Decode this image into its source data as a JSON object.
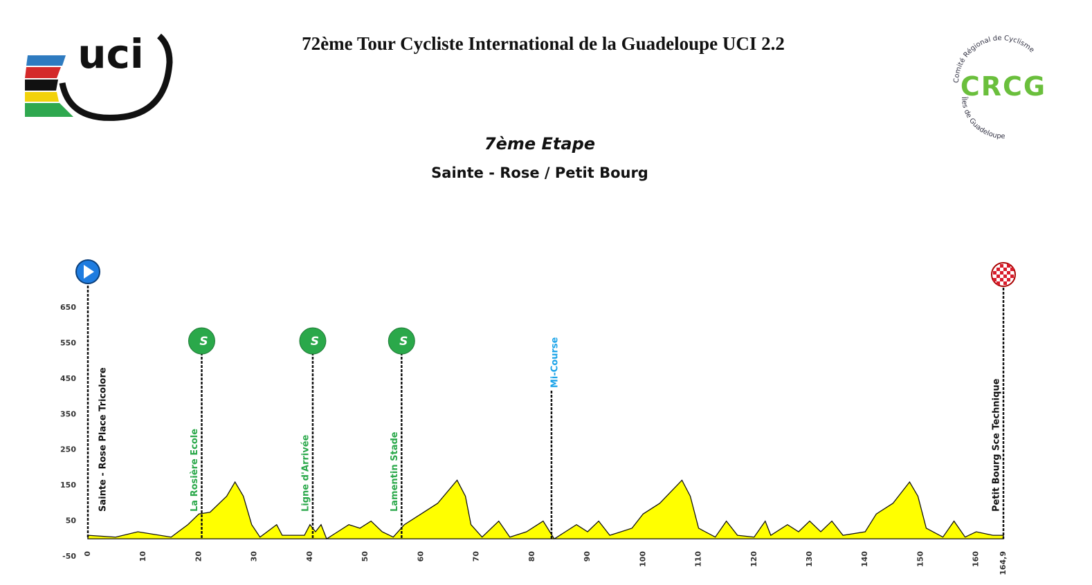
{
  "header": {
    "title": "72ème Tour Cycliste International de la Guadeloupe UCI 2.2",
    "uci_logo": "uci",
    "crcg_logo": "CRCG",
    "crcg_top": "Comité Régional de Cyclisme",
    "crcg_bottom": "Îles de Guadeloupe",
    "stage": "7ème  Etape",
    "route": "Sainte - Rose  /  Petit Bourg"
  },
  "chart_data": {
    "type": "area",
    "color": "#ffff00",
    "x": [
      0,
      5,
      9,
      15,
      18,
      20,
      22,
      25,
      26.5,
      28,
      29.5,
      31,
      34,
      35,
      39,
      40,
      41,
      42,
      43,
      45,
      47,
      49,
      51,
      53,
      55,
      57,
      60,
      63,
      66.5,
      68,
      69,
      71,
      74,
      76,
      79,
      82,
      84,
      86,
      88,
      90,
      92,
      94,
      98,
      100,
      103,
      107,
      108.5,
      110,
      113,
      115,
      117,
      120,
      122,
      123,
      126,
      128,
      130,
      132,
      134,
      136,
      140,
      142,
      145,
      148,
      149.5,
      151,
      154,
      156,
      158,
      160,
      163,
      164.9
    ],
    "values": [
      10,
      5,
      20,
      5,
      40,
      70,
      75,
      120,
      160,
      120,
      40,
      5,
      40,
      10,
      10,
      40,
      20,
      40,
      0,
      20,
      40,
      30,
      50,
      20,
      5,
      40,
      70,
      100,
      165,
      120,
      40,
      5,
      50,
      5,
      20,
      50,
      0,
      20,
      40,
      20,
      50,
      10,
      30,
      70,
      100,
      165,
      120,
      30,
      5,
      50,
      10,
      5,
      50,
      10,
      40,
      20,
      50,
      20,
      50,
      10,
      20,
      70,
      100,
      160,
      120,
      30,
      5,
      50,
      5,
      20,
      10,
      10
    ],
    "xlim": [
      0,
      164.9
    ],
    "ylim": [
      -50,
      650
    ],
    "xticks": [
      0,
      10,
      20,
      30,
      40,
      50,
      60,
      70,
      80,
      90,
      100,
      110,
      120,
      130,
      140,
      150,
      160,
      {
        "value": 164.9,
        "label": "164,9"
      }
    ],
    "yticks": [
      -50,
      50,
      150,
      250,
      350,
      450,
      550,
      650
    ],
    "markers": [
      {
        "x": 0,
        "label": "Sainte - Rose Place Tricolore",
        "color": "#111111",
        "icon": "start"
      },
      {
        "x": 20.5,
        "label": "La Rosière Ecole",
        "color": "#2aa84a",
        "icon": "sprint",
        "icon_label": "S"
      },
      {
        "x": 40.5,
        "label": "Ligne d'Arrivée",
        "color": "#2aa84a",
        "icon": "sprint",
        "icon_label": "S"
      },
      {
        "x": 56.5,
        "label": "Lamentin Stade",
        "color": "#2aa84a",
        "icon": "sprint",
        "icon_label": "S"
      },
      {
        "x": 83.5,
        "label": "Mi-Course",
        "color": "#1aa3e8"
      },
      {
        "x": 164.9,
        "label": "Petit Bourg Sce Technique",
        "color": "#111111",
        "icon": "finish"
      }
    ]
  }
}
